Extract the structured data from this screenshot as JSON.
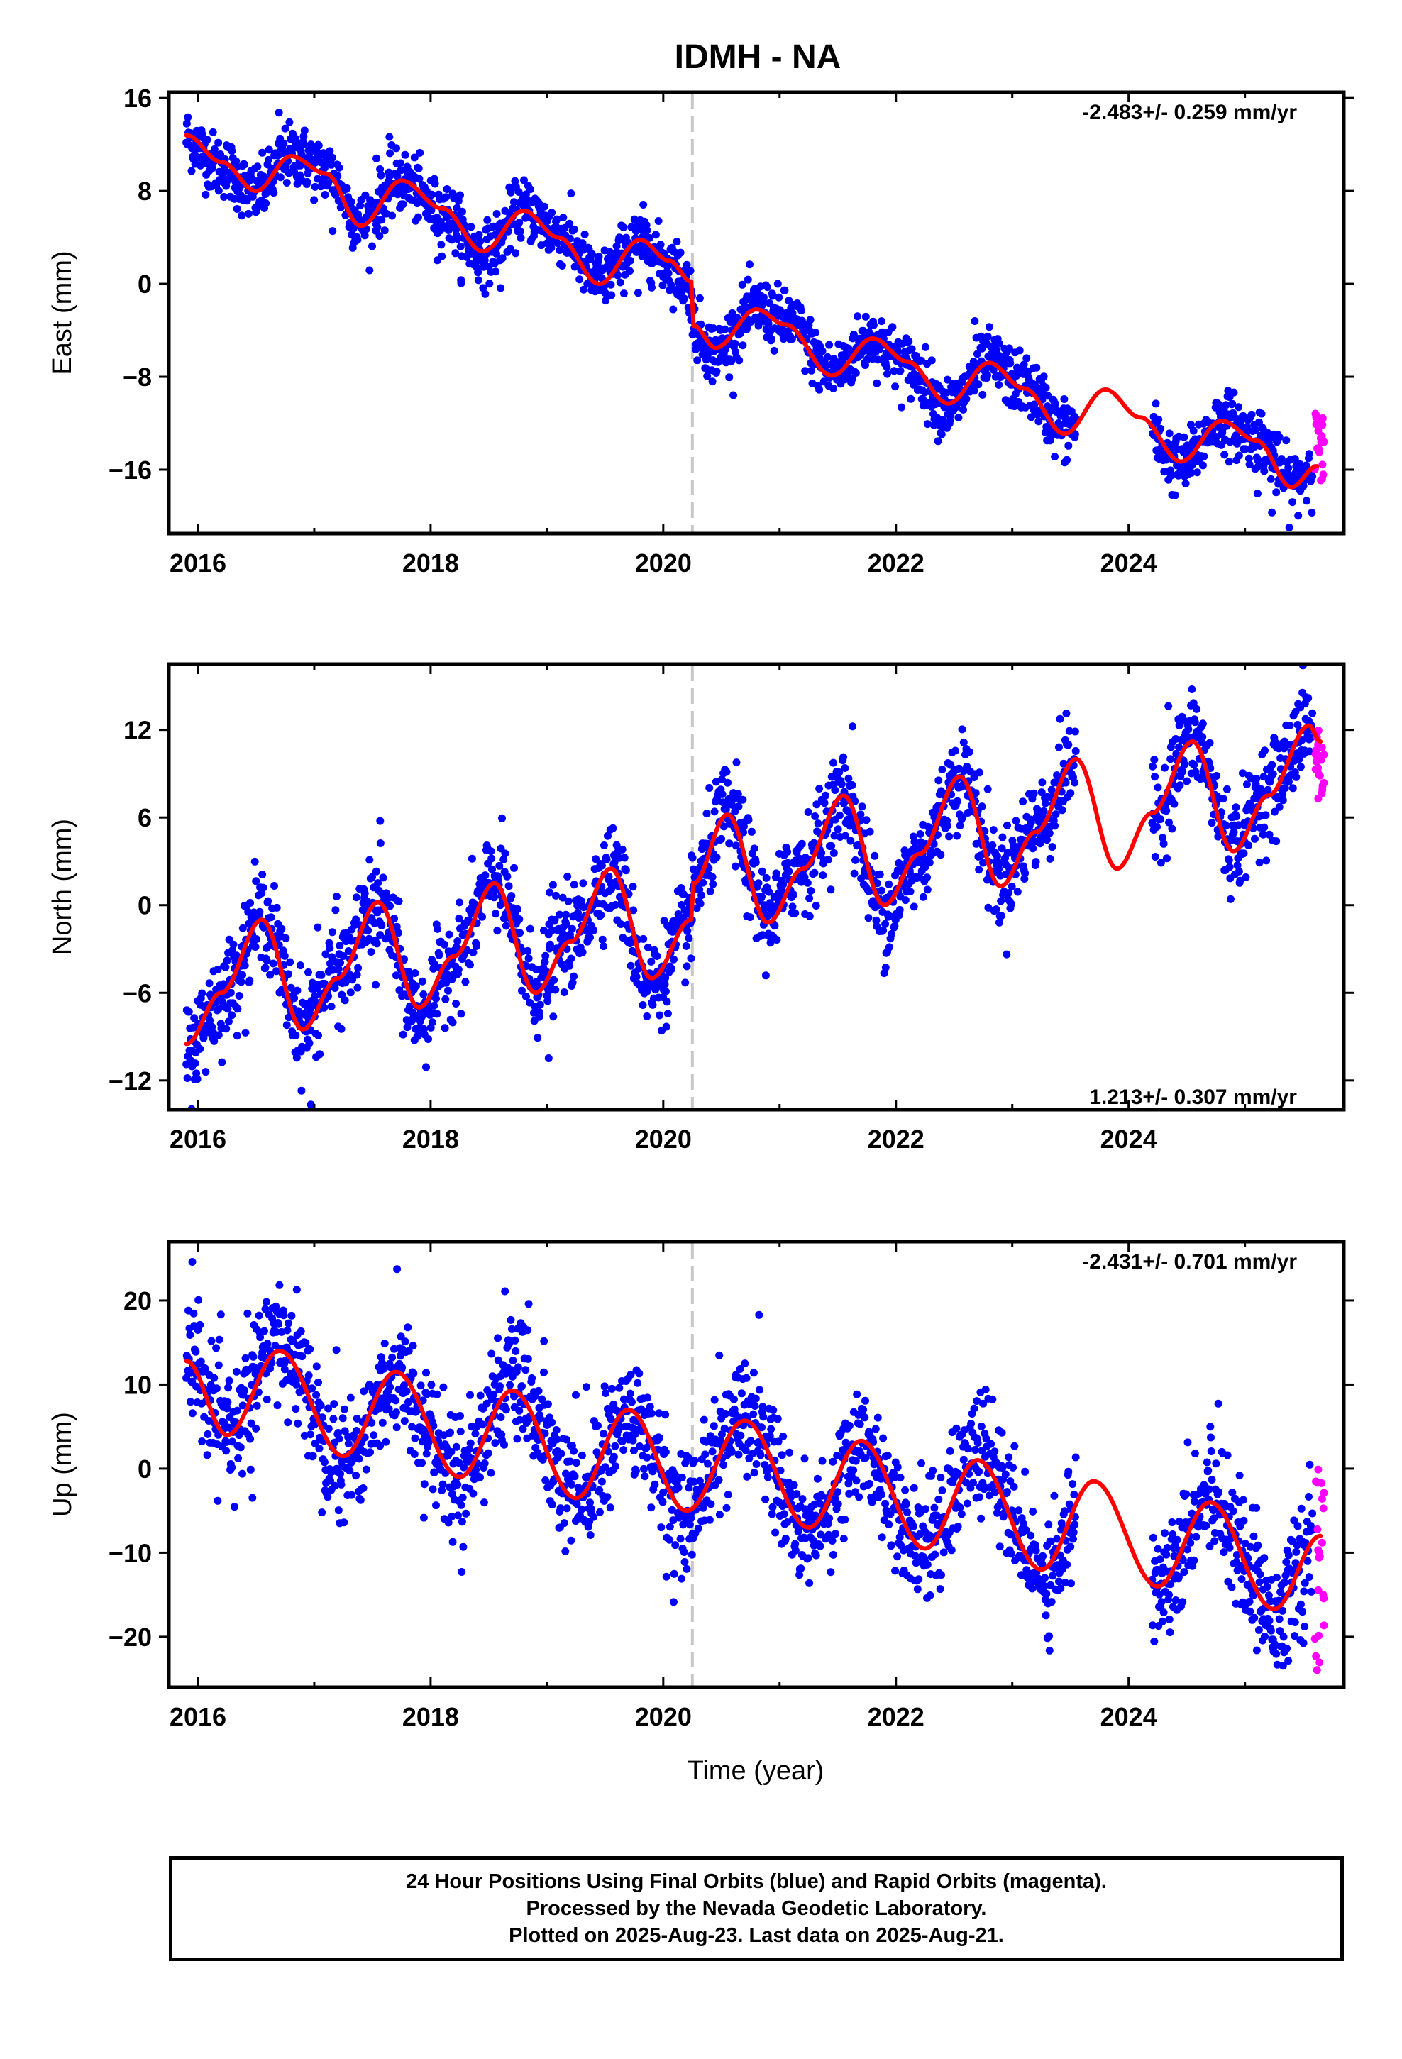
{
  "chart_data": [
    {
      "type": "scatter",
      "title": "IDMH - NA",
      "ylabel": "East (mm)",
      "ylim": [
        -21.5,
        16.5
      ],
      "xlim": [
        2015.75,
        2025.85
      ],
      "xticks": [
        2016,
        2018,
        2020,
        2022,
        2024
      ],
      "xtick_labels": [
        "2016",
        "2018",
        "2020",
        "2022",
        "2024"
      ],
      "yticks": [
        -16,
        -8,
        0,
        8,
        16
      ],
      "ytick_labels": [
        "−16",
        "−8",
        "0",
        "8",
        "16"
      ],
      "rate_text": "-2.483+/- 0.259 mm/yr",
      "rate_position": "top-right",
      "offset_line_x": 2020.25,
      "data_gap": [
        2023.55,
        2024.2
      ],
      "series": [
        {
          "role": "final_orbits",
          "color": "#0000ff",
          "trend_mm_per_yr": -2.483,
          "start": [
            2015.9,
            12.6
          ],
          "scatter_mm": 1.3,
          "offset_at_2020.25": -3.0
        },
        {
          "role": "rapid_orbits",
          "color": "#ff00ff",
          "x_range": [
            2025.6,
            2025.68
          ],
          "y_range": [
            -17,
            -11
          ]
        },
        {
          "role": "model_fit",
          "color": "#ff0000",
          "points": [
            [
              2015.9,
              12.8
            ],
            [
              2016.2,
              10.5
            ],
            [
              2016.5,
              8.0
            ],
            [
              2016.8,
              11.0
            ],
            [
              2017.1,
              9.5
            ],
            [
              2017.4,
              5.0
            ],
            [
              2017.75,
              8.9
            ],
            [
              2018.1,
              6.5
            ],
            [
              2018.45,
              2.8
            ],
            [
              2018.8,
              6.3
            ],
            [
              2019.1,
              4.0
            ],
            [
              2019.45,
              0.0
            ],
            [
              2019.8,
              3.8
            ],
            [
              2020.05,
              2.0
            ],
            [
              2020.24,
              0.2
            ],
            [
              2020.26,
              -3.6
            ],
            [
              2020.45,
              -5.5
            ],
            [
              2020.8,
              -2.2
            ],
            [
              2021.05,
              -3.5
            ],
            [
              2021.45,
              -7.9
            ],
            [
              2021.8,
              -4.7
            ],
            [
              2022.1,
              -6.7
            ],
            [
              2022.45,
              -10.3
            ],
            [
              2022.8,
              -6.8
            ],
            [
              2023.1,
              -9.0
            ],
            [
              2023.45,
              -12.9
            ],
            [
              2023.8,
              -9.1
            ],
            [
              2024.1,
              -11.5
            ],
            [
              2024.45,
              -15.3
            ],
            [
              2024.8,
              -11.8
            ],
            [
              2025.1,
              -13.5
            ],
            [
              2025.4,
              -17.5
            ],
            [
              2025.62,
              -15.7
            ]
          ]
        }
      ]
    },
    {
      "type": "scatter",
      "ylabel": "North (mm)",
      "ylim": [
        -14,
        16.5
      ],
      "xlim": [
        2015.75,
        2025.85
      ],
      "xticks": [
        2016,
        2018,
        2020,
        2022,
        2024
      ],
      "xtick_labels": [
        "2016",
        "2018",
        "2020",
        "2022",
        "2024"
      ],
      "yticks": [
        -12,
        -6,
        0,
        6,
        12
      ],
      "ytick_labels": [
        "−12",
        "−6",
        "0",
        "6",
        "12"
      ],
      "rate_text": "1.213+/- 0.307 mm/yr",
      "rate_position": "bottom-right",
      "offset_line_x": 2020.25,
      "data_gap": [
        2023.55,
        2024.2
      ],
      "series": [
        {
          "role": "final_orbits",
          "color": "#0000ff",
          "trend_mm_per_yr": 1.213,
          "start": [
            2015.9,
            -9.5
          ],
          "scatter_mm": 1.6
        },
        {
          "role": "rapid_orbits",
          "color": "#ff00ff",
          "x_range": [
            2025.6,
            2025.68
          ],
          "y_range": [
            7,
            12
          ]
        },
        {
          "role": "model_fit",
          "color": "#ff0000",
          "points": [
            [
              2015.9,
              -9.5
            ],
            [
              2016.2,
              -6.0
            ],
            [
              2016.55,
              -1.0
            ],
            [
              2016.9,
              -8.5
            ],
            [
              2017.2,
              -5.0
            ],
            [
              2017.55,
              0.2
            ],
            [
              2017.9,
              -7.0
            ],
            [
              2018.2,
              -3.5
            ],
            [
              2018.55,
              1.5
            ],
            [
              2018.9,
              -6.0
            ],
            [
              2019.2,
              -2.5
            ],
            [
              2019.55,
              2.5
            ],
            [
              2019.9,
              -5.0
            ],
            [
              2020.24,
              -1.0
            ],
            [
              2020.26,
              1.5
            ],
            [
              2020.55,
              6.2
            ],
            [
              2020.9,
              -1.2
            ],
            [
              2021.2,
              2.5
            ],
            [
              2021.55,
              7.5
            ],
            [
              2021.9,
              0.0
            ],
            [
              2022.2,
              3.5
            ],
            [
              2022.55,
              8.8
            ],
            [
              2022.9,
              1.3
            ],
            [
              2023.2,
              5.0
            ],
            [
              2023.55,
              10.0
            ],
            [
              2023.9,
              2.5
            ],
            [
              2024.2,
              6.3
            ],
            [
              2024.55,
              11.2
            ],
            [
              2024.9,
              3.7
            ],
            [
              2025.2,
              7.5
            ],
            [
              2025.55,
              12.3
            ],
            [
              2025.65,
              11.2
            ]
          ]
        }
      ]
    },
    {
      "type": "scatter",
      "ylabel": "Up (mm)",
      "xlabel": "Time (year)",
      "ylim": [
        -26,
        27
      ],
      "xlim": [
        2015.75,
        2025.85
      ],
      "xticks": [
        2016,
        2018,
        2020,
        2022,
        2024
      ],
      "xtick_labels": [
        "2016",
        "2018",
        "2020",
        "2022",
        "2024"
      ],
      "yticks": [
        -20,
        -10,
        0,
        10,
        20
      ],
      "ytick_labels": [
        "−20",
        "−10",
        "0",
        "10",
        "20"
      ],
      "rate_text": "-2.431+/- 0.701 mm/yr",
      "rate_position": "top-right",
      "offset_line_x": 2020.25,
      "data_gap": [
        2023.55,
        2024.2
      ],
      "series": [
        {
          "role": "final_orbits",
          "color": "#0000ff",
          "trend_mm_per_yr": -2.431,
          "start": [
            2015.9,
            12.5
          ],
          "scatter_mm": 3.5
        },
        {
          "role": "rapid_orbits",
          "color": "#ff00ff",
          "x_range": [
            2025.6,
            2025.68
          ],
          "y_range": [
            -24,
            0
          ]
        },
        {
          "role": "model_fit",
          "color": "#ff0000",
          "points": [
            [
              2015.9,
              12.8
            ],
            [
              2016.25,
              4.0
            ],
            [
              2016.7,
              14.0
            ],
            [
              2017.25,
              1.5
            ],
            [
              2017.7,
              11.5
            ],
            [
              2018.25,
              -1.0
            ],
            [
              2018.7,
              9.3
            ],
            [
              2019.25,
              -3.5
            ],
            [
              2019.7,
              7.0
            ],
            [
              2020.2,
              -5.0
            ],
            [
              2020.7,
              5.7
            ],
            [
              2021.25,
              -7.0
            ],
            [
              2021.7,
              3.3
            ],
            [
              2022.25,
              -9.5
            ],
            [
              2022.7,
              1.0
            ],
            [
              2023.25,
              -12.0
            ],
            [
              2023.7,
              -1.5
            ],
            [
              2024.25,
              -14.0
            ],
            [
              2024.7,
              -4.0
            ],
            [
              2025.25,
              -16.7
            ],
            [
              2025.65,
              -8.0
            ]
          ]
        }
      ]
    }
  ],
  "footer": {
    "line1": "24 Hour Positions Using Final Orbits (blue) and Rapid Orbits (magenta).",
    "line2": "Processed by the Nevada Geodetic Laboratory.",
    "line3": "Plotted on 2025-Aug-23. Last data on 2025-Aug-21."
  }
}
